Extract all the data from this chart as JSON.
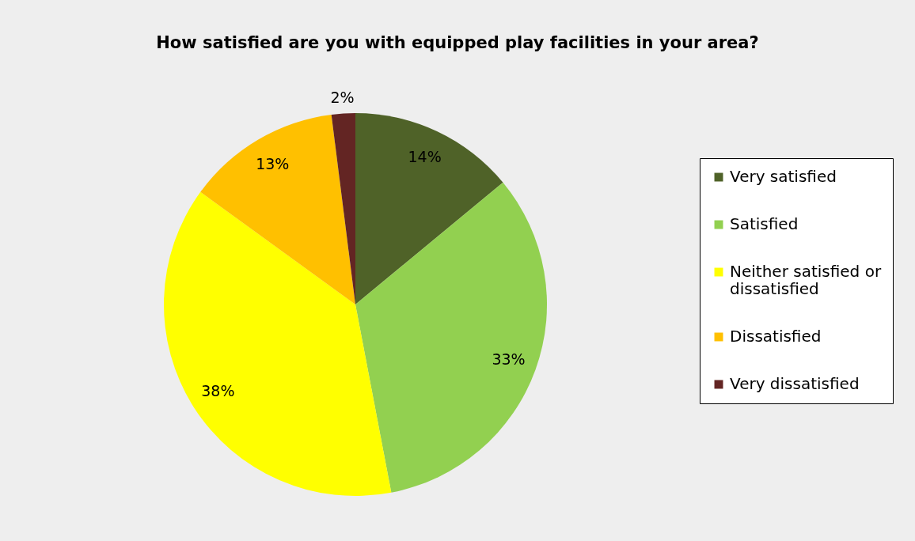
{
  "chart_data": {
    "type": "pie",
    "title": "How satisfied are you with equipped play facilities in your area?",
    "categories": [
      "Very satisfied",
      "Satisfied",
      "Neither satisfied or dissatisfied",
      "Dissatisfied",
      "Very dissatisfied"
    ],
    "values": [
      14,
      33,
      38,
      13,
      2
    ],
    "colors": [
      "#4f6228",
      "#92d050",
      "#ffff00",
      "#ffc000",
      "#632523"
    ],
    "value_labels": [
      "14%",
      "33%",
      "38%",
      "13%",
      "2%"
    ],
    "legend": "right"
  }
}
